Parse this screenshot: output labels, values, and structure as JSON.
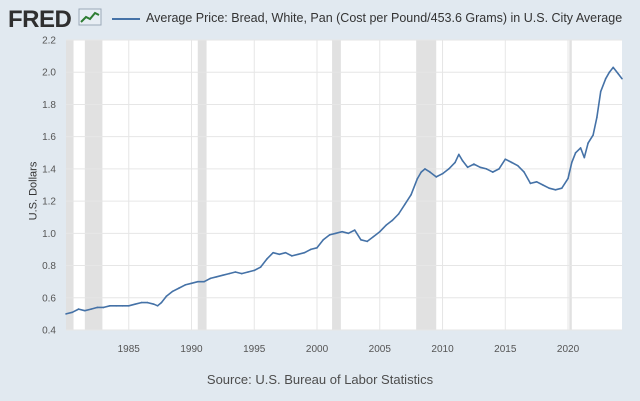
{
  "header": {
    "logo_text": "FRED",
    "series_title": "Average Price: Bread, White, Pan (Cost per Pound/453.6 Grams) in U.S. City Average"
  },
  "footer": {
    "source": "Source: U.S. Bureau of Labor Statistics"
  },
  "colors": {
    "background": "#e1e9f0",
    "plot_background": "#ffffff",
    "line": "#4572a7",
    "recession": "#e1e1e1",
    "grid": "#e6e6e6"
  },
  "chart_data": {
    "type": "line",
    "title": "Average Price: Bread, White, Pan (Cost per Pound/453.6 Grams) in U.S. City Average",
    "xlabel": "",
    "ylabel": "U.S. Dollars",
    "xlim": [
      1980.0,
      2024.3
    ],
    "ylim": [
      0.4,
      2.2
    ],
    "y_ticks": [
      0.4,
      0.6,
      0.8,
      1.0,
      1.2,
      1.4,
      1.6,
      1.8,
      2.0,
      2.2
    ],
    "y_tick_labels": [
      "0.4",
      "0.6",
      "0.8",
      "1.0",
      "1.2",
      "1.4",
      "1.6",
      "1.8",
      "2.0",
      "2.2"
    ],
    "x_ticks": [
      1985,
      1990,
      1995,
      2000,
      2005,
      2010,
      2015,
      2020
    ],
    "x_tick_labels": [
      "1985",
      "1990",
      "1995",
      "2000",
      "2005",
      "2010",
      "2015",
      "2020"
    ],
    "grid": true,
    "recessions": [
      [
        1980.0,
        1980.6
      ],
      [
        1981.5,
        1982.9
      ],
      [
        1990.5,
        1991.2
      ],
      [
        2001.2,
        2001.9
      ],
      [
        2007.9,
        2009.5
      ],
      [
        2020.1,
        2020.3
      ]
    ],
    "series": [
      {
        "name": "Average Price: Bread, White, Pan",
        "x": [
          1980.0,
          1980.5,
          1981.0,
          1981.5,
          1982.0,
          1982.5,
          1983.0,
          1983.5,
          1984.0,
          1984.5,
          1985.0,
          1985.5,
          1986.0,
          1986.5,
          1987.0,
          1987.3,
          1987.6,
          1988.0,
          1988.5,
          1989.0,
          1989.5,
          1990.0,
          1990.5,
          1991.0,
          1991.5,
          1992.0,
          1992.5,
          1993.0,
          1993.5,
          1994.0,
          1994.5,
          1995.0,
          1995.5,
          1996.0,
          1996.5,
          1997.0,
          1997.5,
          1998.0,
          1998.5,
          1999.0,
          1999.5,
          2000.0,
          2000.5,
          2001.0,
          2001.5,
          2002.0,
          2002.5,
          2003.0,
          2003.5,
          2004.0,
          2004.5,
          2005.0,
          2005.5,
          2006.0,
          2006.5,
          2007.0,
          2007.5,
          2008.0,
          2008.3,
          2008.6,
          2009.0,
          2009.5,
          2010.0,
          2010.5,
          2011.0,
          2011.3,
          2011.6,
          2012.0,
          2012.5,
          2013.0,
          2013.5,
          2014.0,
          2014.5,
          2015.0,
          2015.5,
          2016.0,
          2016.5,
          2017.0,
          2017.5,
          2018.0,
          2018.5,
          2019.0,
          2019.5,
          2020.0,
          2020.3,
          2020.6,
          2021.0,
          2021.3,
          2021.6,
          2022.0,
          2022.3,
          2022.6,
          2023.0,
          2023.3,
          2023.6,
          2024.0,
          2024.3
        ],
        "values": [
          0.5,
          0.51,
          0.53,
          0.52,
          0.53,
          0.54,
          0.54,
          0.55,
          0.55,
          0.55,
          0.55,
          0.56,
          0.57,
          0.57,
          0.56,
          0.55,
          0.57,
          0.61,
          0.64,
          0.66,
          0.68,
          0.69,
          0.7,
          0.7,
          0.72,
          0.73,
          0.74,
          0.75,
          0.76,
          0.75,
          0.76,
          0.77,
          0.79,
          0.84,
          0.88,
          0.87,
          0.88,
          0.86,
          0.87,
          0.88,
          0.9,
          0.91,
          0.96,
          0.99,
          1.0,
          1.01,
          1.0,
          1.02,
          0.96,
          0.95,
          0.98,
          1.01,
          1.05,
          1.08,
          1.12,
          1.18,
          1.24,
          1.34,
          1.38,
          1.4,
          1.38,
          1.35,
          1.37,
          1.4,
          1.44,
          1.49,
          1.45,
          1.41,
          1.43,
          1.41,
          1.4,
          1.38,
          1.4,
          1.46,
          1.44,
          1.42,
          1.38,
          1.31,
          1.32,
          1.3,
          1.28,
          1.27,
          1.28,
          1.34,
          1.44,
          1.5,
          1.53,
          1.47,
          1.56,
          1.61,
          1.72,
          1.88,
          1.96,
          2.0,
          2.03,
          1.99,
          1.96
        ]
      }
    ]
  }
}
